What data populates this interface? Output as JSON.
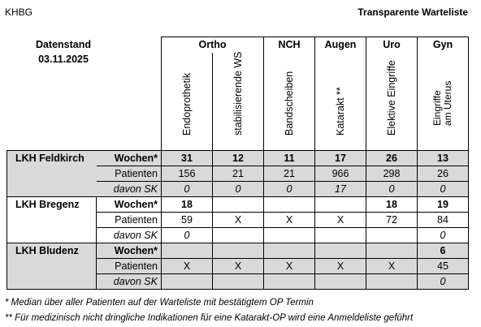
{
  "header": {
    "org": "KHBG",
    "title": "Transparente Warteliste"
  },
  "stand": {
    "label": "Datenstand",
    "date": "03.11.2025"
  },
  "groups": [
    "Ortho",
    "NCH",
    "Augen",
    "Uro",
    "Gyn"
  ],
  "columns": [
    "Endoprothetik",
    "stabilisierende WS",
    "Bandscheiben",
    "Katarakt **",
    "Elektive Eingriffe",
    "Eingriffe",
    "am Uterus"
  ],
  "metrics": {
    "wochen": "Wochen*",
    "patienten": "Patienten",
    "sk": "davon SK"
  },
  "hospitals": [
    {
      "name": "LKH Feldkirch",
      "wochen": [
        "31",
        "12",
        "11",
        "17",
        "26",
        "13"
      ],
      "patienten": [
        "156",
        "21",
        "21",
        "966",
        "298",
        "26"
      ],
      "sk": [
        "0",
        "0",
        "0",
        "17",
        "0",
        "0"
      ]
    },
    {
      "name": "LKH Bregenz",
      "wochen": [
        "18",
        "",
        "",
        "",
        "18",
        "19"
      ],
      "patienten": [
        "59",
        "X",
        "X",
        "X",
        "72",
        "84"
      ],
      "sk": [
        "0",
        "",
        "",
        "",
        "",
        "0"
      ]
    },
    {
      "name": "LKH Bludenz",
      "wochen": [
        "",
        "",
        "",
        "",
        "",
        "6"
      ],
      "patienten": [
        "X",
        "X",
        "X",
        "X",
        "X",
        "45"
      ],
      "sk": [
        "",
        "",
        "",
        "",
        "",
        "0"
      ]
    }
  ],
  "footnotes": [
    "*   Median über aller Patienten auf der Warteliste mit bestätigtem OP Termin",
    "** Für medizinisch nicht dringliche Indikationen für eine Katarakt-OP wird eine Anmeldeliste geführt"
  ]
}
